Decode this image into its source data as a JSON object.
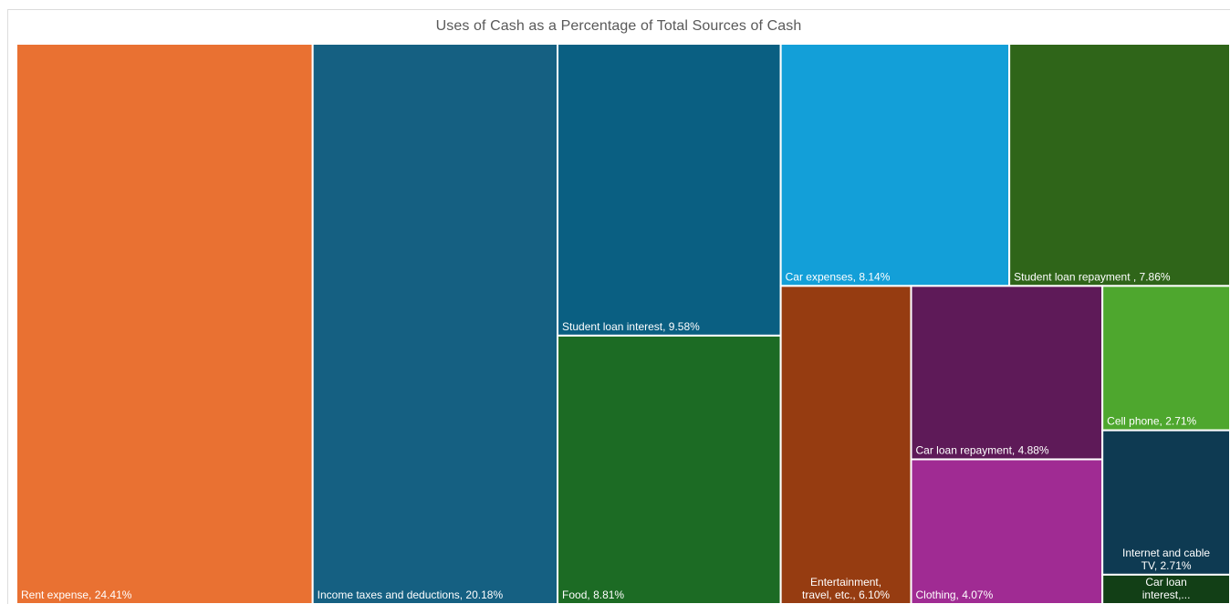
{
  "chart_data": {
    "type": "treemap",
    "title": "Uses of Cash as a Percentage of Total Sources of Cash",
    "items": [
      {
        "name": "Rent expense",
        "value": 24.41,
        "label": "Rent expense, 24.41%",
        "color": "#E97132"
      },
      {
        "name": "Income taxes and deductions",
        "value": 20.18,
        "label": "Income taxes and deductions, 20.18%",
        "color": "#156082"
      },
      {
        "name": "Student loan interest",
        "value": 9.58,
        "label": "Student loan interest, 9.58%",
        "color": "#0A5F82"
      },
      {
        "name": "Food",
        "value": 8.81,
        "label": "Food, 8.81%",
        "color": "#1C6B24"
      },
      {
        "name": "Car expenses",
        "value": 8.14,
        "label": "Car expenses, 8.14%",
        "color": "#139FD8"
      },
      {
        "name": "Student loan repayment",
        "value": 7.86,
        "label": "Student loan repayment , 7.86%",
        "color": "#2F6519"
      },
      {
        "name": "Entertainment, travel, etc.",
        "value": 6.1,
        "label": "Entertainment, travel, etc., 6.10%",
        "color": "#963C11"
      },
      {
        "name": "Car loan repayment",
        "value": 4.88,
        "label": "Car loan repayment, 4.88%",
        "color": "#5E1A58"
      },
      {
        "name": "Clothing",
        "value": 4.07,
        "label": "Clothing, 4.07%",
        "color": "#A02B93"
      },
      {
        "name": "Cell phone",
        "value": 2.71,
        "label": "Cell phone, 2.71%",
        "color": "#4EA72E"
      },
      {
        "name": "Internet and cable TV",
        "value": 2.71,
        "label": "Internet and cable TV, 2.71%",
        "color": "#0E3A52"
      },
      {
        "name": "Car loan interest",
        "value": 0.55,
        "label": "Car loan interest,...",
        "color": "#123F16"
      }
    ]
  }
}
